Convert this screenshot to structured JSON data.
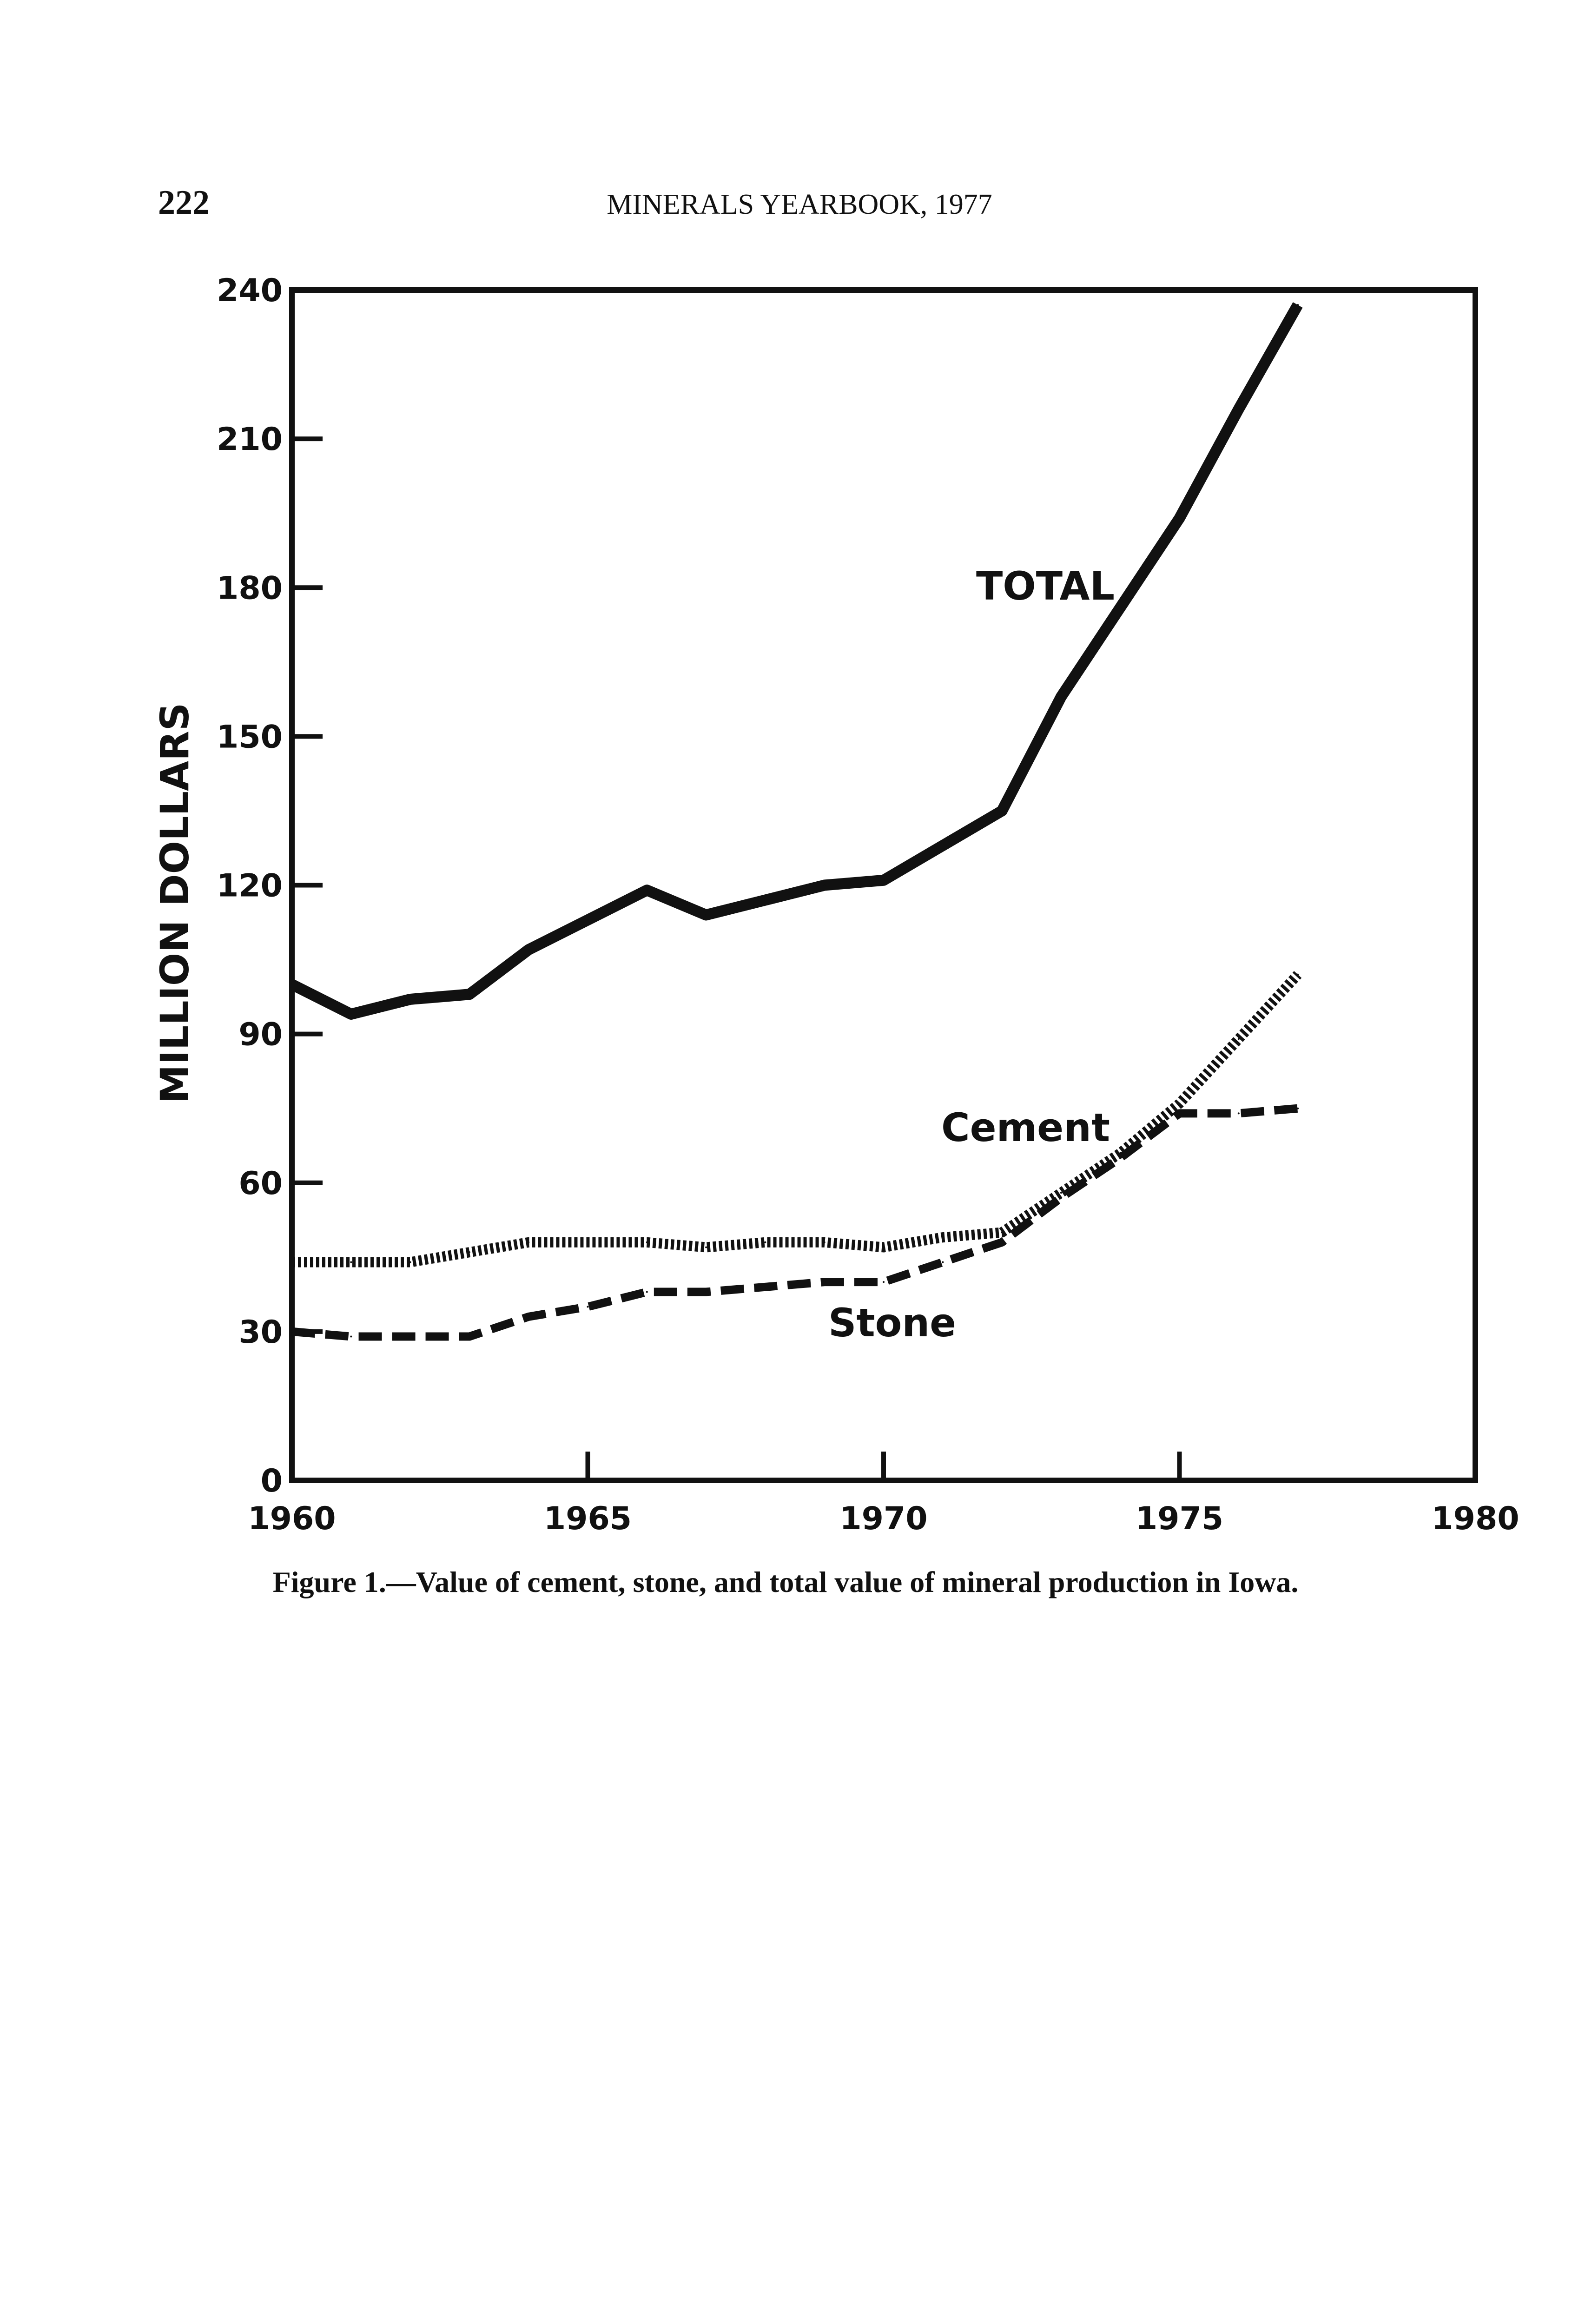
{
  "header": {
    "page_number": "222",
    "running_title": "MINERALS YEARBOOK, 1977"
  },
  "caption": "Figure 1.—Value of cement, stone, and total value of mineral production in Iowa.",
  "chart_data": {
    "type": "line",
    "title": "",
    "xlabel": "",
    "ylabel": "MILLION DOLLARS",
    "xlim": [
      1960,
      1980
    ],
    "ylim": [
      0,
      240
    ],
    "x_ticks": [
      1960,
      1965,
      1970,
      1975,
      1980
    ],
    "x_tick_labels": [
      "1960",
      "1965",
      "1970",
      "1975",
      "1980"
    ],
    "y_ticks": [
      0,
      30,
      60,
      90,
      120,
      150,
      180,
      210,
      240
    ],
    "y_tick_labels": [
      "0",
      "30",
      "60",
      "90",
      "120",
      "150",
      "180",
      "210",
      "240"
    ],
    "grid": false,
    "x": [
      1960,
      1961,
      1962,
      1963,
      1964,
      1965,
      1966,
      1967,
      1968,
      1969,
      1970,
      1971,
      1972,
      1973,
      1974,
      1975,
      1976,
      1977
    ],
    "series": [
      {
        "name": "TOTAL",
        "style": "solid",
        "values": [
          100,
          94,
          97,
          98,
          107,
          113,
          119,
          114,
          117,
          120,
          121,
          128,
          135,
          158,
          176,
          194,
          216,
          237
        ]
      },
      {
        "name": "Cement",
        "style": "dotted",
        "values": [
          44,
          44,
          44,
          46,
          48,
          48,
          48,
          47,
          48,
          48,
          47,
          49,
          50,
          58,
          66,
          76,
          89,
          102
        ]
      },
      {
        "name": "Stone",
        "style": "dashed",
        "values": [
          30,
          29,
          29,
          29,
          33,
          35,
          38,
          38,
          39,
          40,
          40,
          44,
          48,
          57,
          65,
          74,
          74,
          75
        ]
      }
    ],
    "annotations": [
      {
        "text": "TOTAL",
        "series": "TOTAL"
      },
      {
        "text": "Cement",
        "series": "Cement"
      },
      {
        "text": "Stone",
        "series": "Stone"
      }
    ]
  }
}
